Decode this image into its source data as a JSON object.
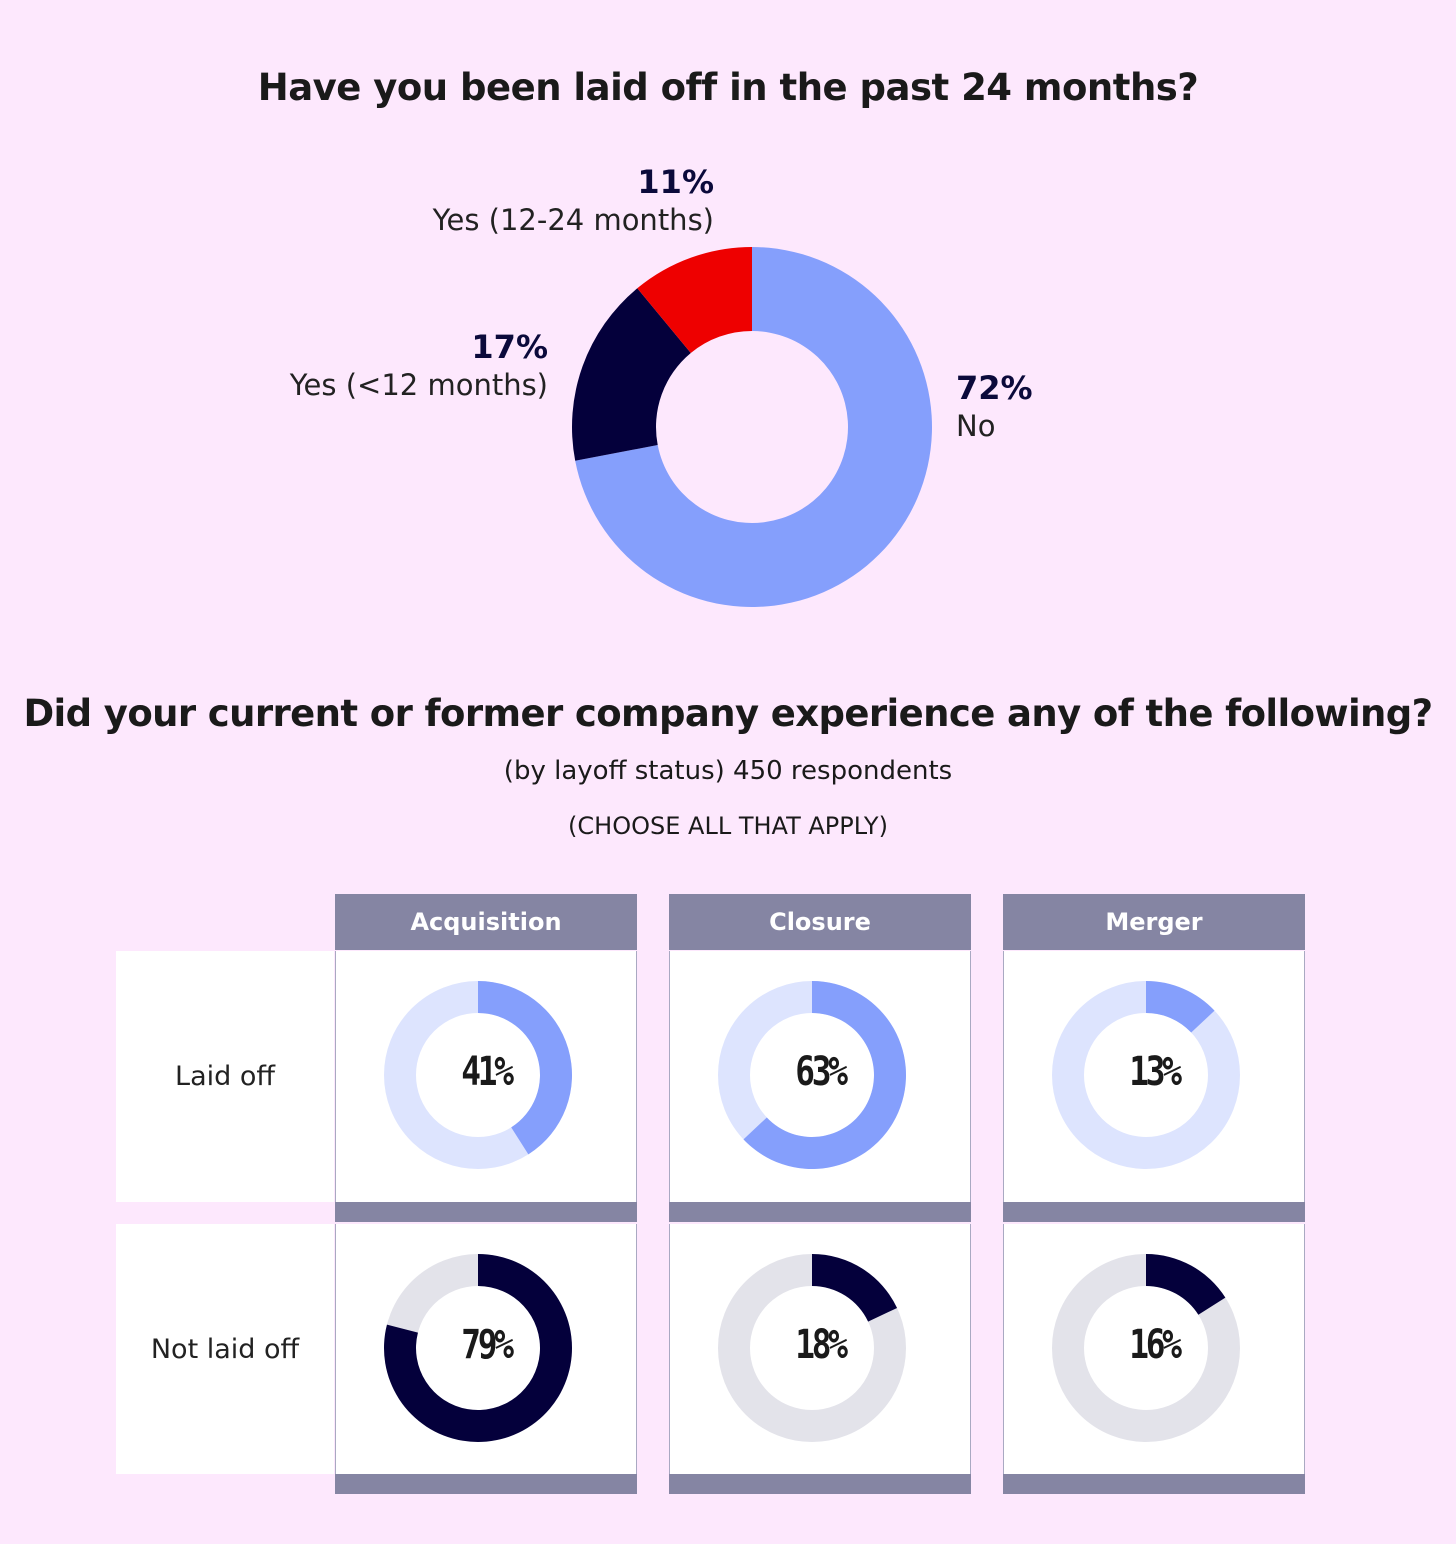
{
  "colors": {
    "background": "#fde8fd",
    "no": "#859ffc",
    "yes_lt12": "#04003b",
    "yes_12_24": "#ee0000",
    "header": "#8585a3",
    "laid_off_fill": "#859ffc",
    "laid_off_track": "#dde4fe",
    "not_laid_off_fill": "#04003b",
    "not_laid_off_track": "#e3e3ea"
  },
  "chart_data": [
    {
      "type": "pie",
      "title": "Have you been laid off in the past 24 months?",
      "slices": [
        {
          "label": "No",
          "value": 72,
          "display": "72%"
        },
        {
          "label": "Yes (<12 months)",
          "value": 17,
          "display": "17%"
        },
        {
          "label": "Yes (12-24 months)",
          "value": 11,
          "display": "11%"
        }
      ]
    },
    {
      "type": "table",
      "title": "Did your current or former company experience any of the following?",
      "subtitle": "(by layoff status) 450 respondents",
      "note": "(CHOOSE ALL THAT APPLY)",
      "columns": [
        "Acquisition",
        "Closure",
        "Merger"
      ],
      "rows": [
        {
          "label": "Laid off",
          "values": [
            41,
            63,
            13
          ],
          "display": [
            "41%",
            "63%",
            "13%"
          ]
        },
        {
          "label": "Not laid off",
          "values": [
            79,
            18,
            16
          ],
          "display": [
            "79%",
            "18%",
            "16%"
          ]
        }
      ]
    }
  ]
}
